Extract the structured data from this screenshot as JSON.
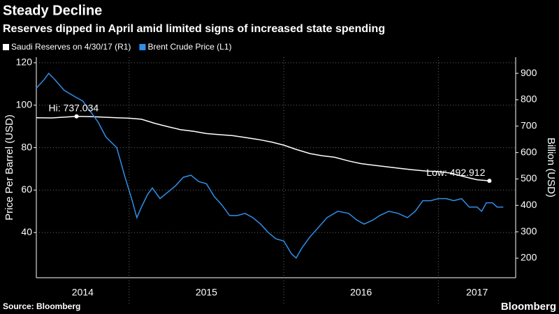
{
  "chart_data": {
    "type": "line",
    "title": "Steady Decline",
    "subtitle": "Reserves dipped in April amid limited signs of increased state spending",
    "ylabel": "Price Per Barrel (USD)",
    "y2label": "Billion (USD)",
    "source": "Source: Bloomberg",
    "brand": "Bloomberg",
    "xlim": [
      2014.4,
      2017.5
    ],
    "xticks": [
      2014,
      2015,
      2016,
      2017
    ],
    "ylim": [
      18.7,
      122.6
    ],
    "yticks": [
      40,
      60,
      80,
      100,
      120
    ],
    "y2lim": [
      126,
      961
    ],
    "y2ticks": [
      200,
      300,
      400,
      500,
      600,
      700,
      800,
      900
    ],
    "grid": true,
    "series": [
      {
        "name": "Saudi Reserves on 4/30/17 (R1)",
        "color": "#ffffff",
        "axis": "y2",
        "x": [
          2014.4,
          2014.5,
          2014.58,
          2014.66,
          2014.75,
          2014.83,
          2014.92,
          2015.0,
          2015.08,
          2015.17,
          2015.25,
          2015.33,
          2015.42,
          2015.5,
          2015.58,
          2015.67,
          2015.75,
          2015.83,
          2015.92,
          2016.0,
          2016.08,
          2016.17,
          2016.25,
          2016.33,
          2016.42,
          2016.5,
          2016.58,
          2016.67,
          2016.75,
          2016.83,
          2016.92,
          2017.0,
          2017.08,
          2017.17,
          2017.25,
          2017.33
        ],
        "values": [
          732,
          731,
          734,
          737.034,
          736,
          734,
          732,
          730,
          726,
          710,
          698,
          687,
          680,
          672,
          668,
          664,
          657,
          650,
          640,
          628,
          612,
          596,
          588,
          582,
          568,
          558,
          552,
          546,
          540,
          535,
          530,
          528,
          522,
          508,
          497,
          492.912
        ]
      },
      {
        "name": "Brent Crude Price (L1)",
        "color": "#2f8fe8",
        "axis": "y",
        "x": [
          2014.4,
          2014.45,
          2014.48,
          2014.52,
          2014.58,
          2014.65,
          2014.7,
          2014.75,
          2014.8,
          2014.85,
          2014.92,
          2014.97,
          2015.02,
          2015.05,
          2015.08,
          2015.12,
          2015.15,
          2015.2,
          2015.25,
          2015.3,
          2015.35,
          2015.4,
          2015.45,
          2015.5,
          2015.55,
          2015.6,
          2015.65,
          2015.7,
          2015.75,
          2015.8,
          2015.85,
          2015.9,
          2015.95,
          2016.0,
          2016.05,
          2016.08,
          2016.12,
          2016.17,
          2016.22,
          2016.28,
          2016.35,
          2016.42,
          2016.47,
          2016.52,
          2016.58,
          2016.62,
          2016.68,
          2016.74,
          2016.8,
          2016.85,
          2016.9,
          2016.95,
          2017.0,
          2017.05,
          2017.1,
          2017.15,
          2017.2,
          2017.25,
          2017.28,
          2017.31,
          2017.35,
          2017.38,
          2017.42
        ],
        "values": [
          108,
          112,
          115,
          112,
          107,
          104,
          102,
          97,
          92,
          85,
          80,
          67,
          55,
          47,
          52,
          58,
          61,
          56,
          59,
          62,
          66,
          67,
          64,
          63,
          57,
          53,
          48,
          48,
          49,
          47,
          44,
          40,
          37,
          36,
          30,
          28,
          33,
          38,
          42,
          47,
          50,
          49,
          46,
          44,
          46,
          48,
          50,
          49,
          47,
          50,
          55,
          55,
          56,
          56,
          55,
          56,
          52,
          52,
          50,
          54,
          54,
          52,
          52
        ]
      }
    ],
    "annotations": [
      {
        "text": "Hi: 737.034",
        "x": 2014.66,
        "y": 737.034
      },
      {
        "text": "Low: 492.912",
        "x": 2017.33,
        "y": 492.912
      }
    ]
  }
}
